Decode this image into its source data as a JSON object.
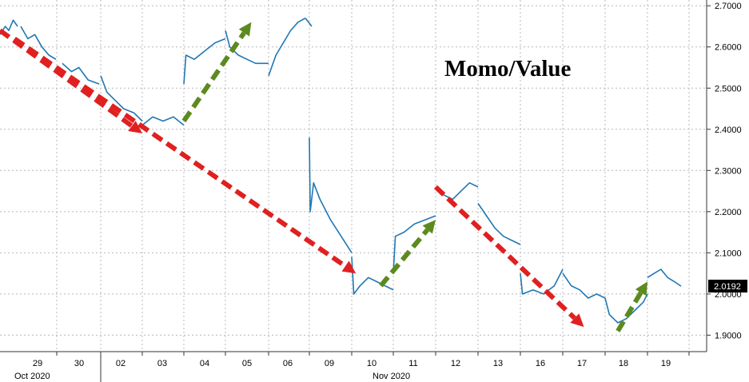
{
  "chart_data": {
    "type": "line",
    "title": "Momo/Value",
    "xlabel": "",
    "ylabel": "",
    "y_axis_position": "right",
    "ylim": [
      1.86,
      2.714
    ],
    "y_ticks": [
      "2.7000",
      "2.6000",
      "2.5000",
      "2.4000",
      "2.3000",
      "2.2000",
      "2.1000",
      "2.0000",
      "1.9000"
    ],
    "y_tick_values": [
      2.7,
      2.6,
      2.5,
      2.4,
      2.3,
      2.2,
      2.1,
      2.0,
      1.9
    ],
    "x_days": [
      "29",
      "30",
      "02",
      "03",
      "04",
      "05",
      "06",
      "09",
      "10",
      "11",
      "12",
      "13",
      "16",
      "17",
      "18",
      "19"
    ],
    "x_month_labels": [
      {
        "label": "Oct 2020",
        "at_day_index": 0
      },
      {
        "label": "Nov 2020",
        "at_day_index": 8
      }
    ],
    "grid": true,
    "last_value": "2.0192",
    "series": [
      {
        "color": "#1f77b4",
        "sessions": [
          {
            "day": "28",
            "points": [
              [
                0.0,
                2.63
              ],
              [
                0.3,
                2.65
              ],
              [
                0.5,
                2.64
              ],
              [
                0.75,
                2.665
              ],
              [
                1.0,
                2.65
              ]
            ]
          },
          {
            "day": "29",
            "points": [
              [
                0.0,
                2.65
              ],
              [
                0.2,
                2.62
              ],
              [
                0.4,
                2.63
              ],
              [
                0.6,
                2.6
              ],
              [
                0.8,
                2.58
              ],
              [
                1.0,
                2.57
              ]
            ]
          },
          {
            "day": "30",
            "points": [
              [
                0.0,
                2.56
              ],
              [
                0.25,
                2.54
              ],
              [
                0.45,
                2.55
              ],
              [
                0.7,
                2.52
              ],
              [
                1.0,
                2.51
              ]
            ]
          },
          {
            "day": "02",
            "points": [
              [
                0.0,
                2.53
              ],
              [
                0.15,
                2.49
              ],
              [
                0.35,
                2.47
              ],
              [
                0.55,
                2.45
              ],
              [
                0.8,
                2.44
              ],
              [
                1.0,
                2.42
              ]
            ]
          },
          {
            "day": "03",
            "points": [
              [
                0.0,
                2.41
              ],
              [
                0.25,
                2.43
              ],
              [
                0.5,
                2.42
              ],
              [
                0.75,
                2.43
              ],
              [
                1.0,
                2.41
              ]
            ]
          },
          {
            "day": "04",
            "points": [
              [
                0.0,
                2.51
              ],
              [
                0.05,
                2.58
              ],
              [
                0.25,
                2.57
              ],
              [
                0.5,
                2.59
              ],
              [
                0.75,
                2.61
              ],
              [
                1.0,
                2.62
              ]
            ]
          },
          {
            "day": "05",
            "points": [
              [
                0.0,
                2.64
              ],
              [
                0.1,
                2.6
              ],
              [
                0.3,
                2.58
              ],
              [
                0.5,
                2.57
              ],
              [
                0.7,
                2.56
              ],
              [
                1.0,
                2.56
              ]
            ]
          },
          {
            "day": "06",
            "points": [
              [
                0.0,
                2.53
              ],
              [
                0.2,
                2.58
              ],
              [
                0.4,
                2.61
              ],
              [
                0.6,
                2.64
              ],
              [
                0.8,
                2.66
              ],
              [
                1.0,
                2.67
              ]
            ]
          },
          {
            "day": "06b",
            "points": [
              [
                0.0,
                2.67
              ],
              [
                0.5,
                2.66
              ],
              [
                1.0,
                2.65
              ]
            ]
          },
          {
            "day": "09",
            "points": [
              [
                0.0,
                2.38
              ],
              [
                0.02,
                2.2
              ],
              [
                0.1,
                2.27
              ],
              [
                0.25,
                2.23
              ],
              [
                0.5,
                2.18
              ],
              [
                0.75,
                2.14
              ],
              [
                1.0,
                2.1
              ]
            ]
          },
          {
            "day": "10",
            "points": [
              [
                0.0,
                2.09
              ],
              [
                0.05,
                2.0
              ],
              [
                0.2,
                2.02
              ],
              [
                0.4,
                2.04
              ],
              [
                0.6,
                2.03
              ],
              [
                0.8,
                2.02
              ],
              [
                1.0,
                2.01
              ]
            ]
          },
          {
            "day": "11",
            "points": [
              [
                0.0,
                2.05
              ],
              [
                0.05,
                2.14
              ],
              [
                0.25,
                2.15
              ],
              [
                0.5,
                2.17
              ],
              [
                0.75,
                2.18
              ],
              [
                1.0,
                2.19
              ]
            ]
          },
          {
            "day": "12",
            "points": [
              [
                0.0,
                2.26
              ],
              [
                0.2,
                2.24
              ],
              [
                0.4,
                2.23
              ],
              [
                0.6,
                2.25
              ],
              [
                0.8,
                2.27
              ],
              [
                1.0,
                2.26
              ]
            ]
          },
          {
            "day": "13",
            "points": [
              [
                0.0,
                2.22
              ],
              [
                0.2,
                2.19
              ],
              [
                0.4,
                2.16
              ],
              [
                0.6,
                2.14
              ],
              [
                0.8,
                2.13
              ],
              [
                1.0,
                2.12
              ]
            ]
          },
          {
            "day": "16",
            "points": [
              [
                0.0,
                2.05
              ],
              [
                0.05,
                2.0
              ],
              [
                0.3,
                2.01
              ],
              [
                0.55,
                2.0
              ],
              [
                0.8,
                2.02
              ],
              [
                1.0,
                2.06
              ]
            ]
          },
          {
            "day": "17",
            "points": [
              [
                0.0,
                2.05
              ],
              [
                0.2,
                2.02
              ],
              [
                0.4,
                2.01
              ],
              [
                0.6,
                1.99
              ],
              [
                0.8,
                2.0
              ],
              [
                1.0,
                1.99
              ]
            ]
          },
          {
            "day": "18",
            "points": [
              [
                0.0,
                1.99
              ],
              [
                0.1,
                1.95
              ],
              [
                0.3,
                1.93
              ],
              [
                0.5,
                1.94
              ],
              [
                0.7,
                1.96
              ],
              [
                0.9,
                1.98
              ],
              [
                1.0,
                2.0
              ]
            ]
          },
          {
            "day": "19",
            "points": [
              [
                0.0,
                2.04
              ],
              [
                0.2,
                2.05
              ],
              [
                0.4,
                2.06
              ],
              [
                0.6,
                2.04
              ],
              [
                0.8,
                2.03
              ],
              [
                1.0,
                2.019
              ]
            ]
          }
        ]
      }
    ],
    "annotations": [
      {
        "type": "arrow",
        "color": "#e02020",
        "direction": "down",
        "from": [
          28.0,
          2.64
        ],
        "to": [
          3.0,
          2.39
        ]
      },
      {
        "type": "arrow",
        "color": "#5c8a1e",
        "direction": "up",
        "from": [
          4.0,
          2.42
        ],
        "to": [
          5.6,
          2.66
        ]
      },
      {
        "type": "arrow",
        "color": "#e02020",
        "direction": "down",
        "from": [
          7.7,
          2.62
        ],
        "to": [
          10.1,
          2.05
        ]
      },
      {
        "type": "arrow",
        "color": "#5c8a1e",
        "direction": "up",
        "from": [
          10.7,
          2.02
        ],
        "to": [
          12.0,
          2.18
        ]
      },
      {
        "type": "arrow",
        "color": "#e02020",
        "direction": "down",
        "from": [
          12.0,
          2.26
        ],
        "to": [
          17.5,
          1.92
        ]
      },
      {
        "type": "arrow",
        "color": "#5c8a1e",
        "direction": "up",
        "from": [
          18.3,
          1.91
        ],
        "to": [
          19.0,
          2.03
        ]
      }
    ]
  }
}
